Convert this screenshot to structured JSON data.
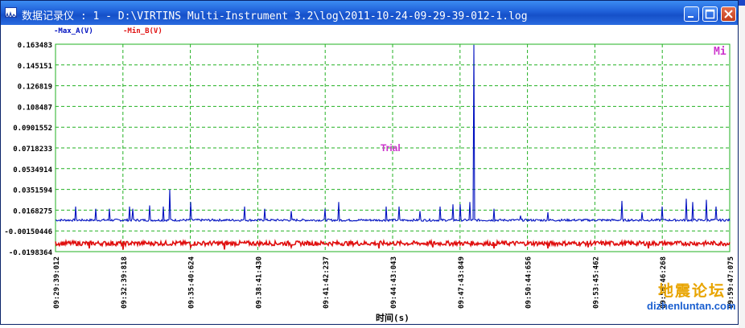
{
  "window": {
    "title": "数据记录仪 : 1 - D:\\VIRTINS Multi-Instrument 3.2\\log\\2011-10-24-09-29-39-012-1.log",
    "buttons": {
      "minimize": "minimize",
      "maximize": "maximize",
      "close": "close"
    }
  },
  "colors": {
    "series_a": "#0010c0",
    "series_b": "#e01010",
    "grid": "#22b022",
    "label_magenta": "#cc33cc"
  },
  "overlay": {
    "mi": "Mi",
    "trial": "Trial"
  },
  "watermark": {
    "text": "地震论坛",
    "url": "dizhenluntan.com"
  },
  "chart_data": {
    "type": "line",
    "xlabel": "时间(s)",
    "ylabel": "",
    "y_ticks": [
      "0.163483",
      "0.145151",
      "0.126819",
      "0.108487",
      "0.0901552",
      "0.0718233",
      "0.0534914",
      "0.0351594",
      "0.0168275",
      "-0.00150446",
      "-0.0198364"
    ],
    "ylim": [
      -0.0198364,
      0.163483
    ],
    "x_ticks": [
      "09:29:39:012",
      "09:32:39:818",
      "09:35:40:624",
      "09:38:41:430",
      "09:41:42:237",
      "09:44:43:043",
      "09:47:43:849",
      "09:50:44:656",
      "09:53:45:462",
      "09:56:46:268",
      "09:59:47:075"
    ],
    "grid": true,
    "series": [
      {
        "name": "Max_A(V)",
        "baseline": 0.008,
        "noise": 0.001,
        "spikes": [
          [
            0.03,
            0.02
          ],
          [
            0.06,
            0.018
          ],
          [
            0.08,
            0.018
          ],
          [
            0.11,
            0.02
          ],
          [
            0.115,
            0.018
          ],
          [
            0.14,
            0.021
          ],
          [
            0.16,
            0.02
          ],
          [
            0.17,
            0.035
          ],
          [
            0.2,
            0.024
          ],
          [
            0.28,
            0.02
          ],
          [
            0.31,
            0.018
          ],
          [
            0.35,
            0.016
          ],
          [
            0.4,
            0.018
          ],
          [
            0.42,
            0.024
          ],
          [
            0.49,
            0.02
          ],
          [
            0.51,
            0.02
          ],
          [
            0.54,
            0.016
          ],
          [
            0.57,
            0.02
          ],
          [
            0.59,
            0.022
          ],
          [
            0.6,
            0.022
          ],
          [
            0.615,
            0.024
          ],
          [
            0.62,
            0.163
          ],
          [
            0.65,
            0.018
          ],
          [
            0.69,
            0.012
          ],
          [
            0.73,
            0.015
          ],
          [
            0.84,
            0.025
          ],
          [
            0.87,
            0.015
          ],
          [
            0.9,
            0.02
          ],
          [
            0.935,
            0.027
          ],
          [
            0.945,
            0.024
          ],
          [
            0.965,
            0.026
          ],
          [
            0.98,
            0.02
          ]
        ]
      },
      {
        "name": "Min_B(V)",
        "baseline": -0.0125,
        "noise": 0.002,
        "spikes": [
          [
            0.05,
            -0.017
          ],
          [
            0.1,
            -0.018
          ],
          [
            0.2,
            -0.016
          ],
          [
            0.25,
            -0.018
          ],
          [
            0.35,
            -0.016
          ],
          [
            0.48,
            -0.017
          ],
          [
            0.56,
            -0.016
          ],
          [
            0.65,
            -0.017
          ],
          [
            0.73,
            -0.017
          ],
          [
            0.79,
            -0.016
          ],
          [
            0.88,
            -0.017
          ]
        ]
      }
    ]
  }
}
